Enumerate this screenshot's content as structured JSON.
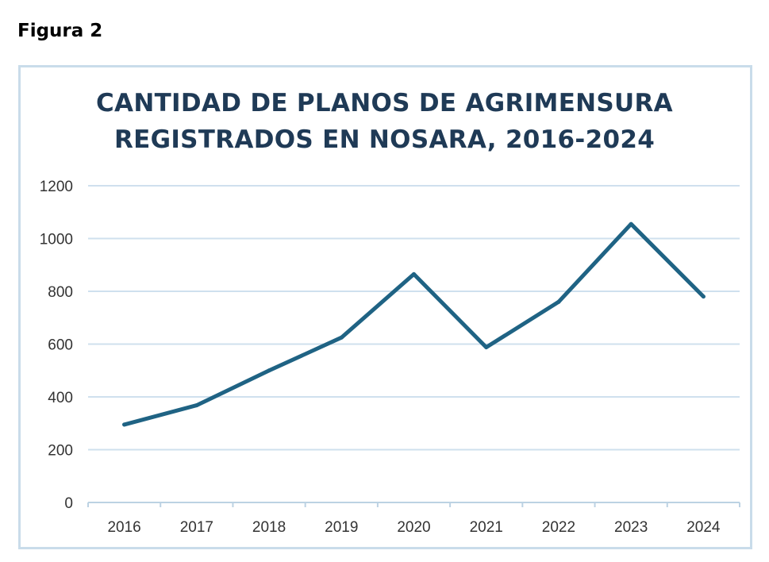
{
  "figure_label": "Figura 2",
  "colors": {
    "line": "#1f6384",
    "grid": "#cfe0ee",
    "axis": "#bcd2e3",
    "title": "#1f3a56",
    "frame": "#c9dcea"
  },
  "chart_data": {
    "type": "line",
    "title": "CANTIDAD DE PLANOS DE AGRIMENSURA",
    "subtitle": "REGISTRADOS EN NOSARA, 2016-2024",
    "xlabel": "",
    "ylabel": "",
    "categories": [
      "2016",
      "2017",
      "2018",
      "2019",
      "2020",
      "2021",
      "2022",
      "2023",
      "2024"
    ],
    "series": [
      {
        "values": [
          295,
          368,
          500,
          625,
          865,
          588,
          760,
          1055,
          780
        ]
      }
    ],
    "ylim": [
      0,
      1200
    ],
    "yticks": [
      0,
      200,
      400,
      600,
      800,
      1000,
      1200
    ],
    "grid": true,
    "legend": "none"
  }
}
